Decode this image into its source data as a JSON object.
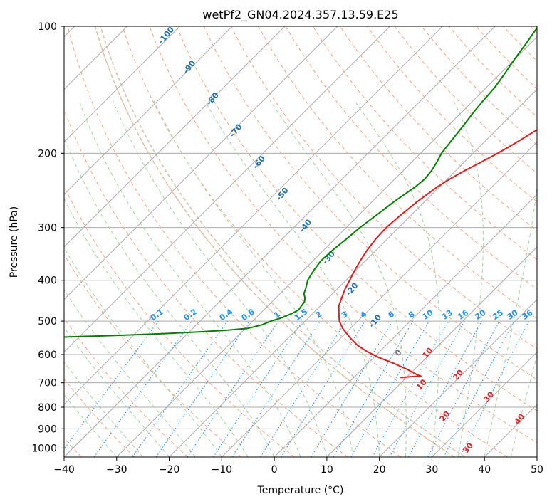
{
  "chart_data": {
    "type": "line",
    "subtype": "skew-t log-p",
    "title": "wetPf2_GN04.2024.357.13.59.E25",
    "xlabel": "Temperature (°C)",
    "ylabel": "Pressure (hPa)",
    "xlim": [
      -40,
      50
    ],
    "ylim": [
      1050,
      100
    ],
    "y_scale": "log",
    "grid": true,
    "x_ticks": [
      -40,
      -30,
      -20,
      -10,
      0,
      10,
      20,
      30,
      40,
      50
    ],
    "x_tick_labels": [
      "−40",
      "−30",
      "−20",
      "−10",
      "0",
      "10",
      "20",
      "30",
      "40",
      "50"
    ],
    "y_ticks": [
      100,
      200,
      300,
      400,
      500,
      600,
      700,
      800,
      900,
      1000
    ],
    "y_tick_labels": [
      "100",
      "200",
      "300",
      "400",
      "500",
      "600",
      "700",
      "800",
      "900",
      "1000"
    ],
    "series": [
      {
        "role": "temperature",
        "color": "#e41a1c",
        "points": [
          [
            680,
            8.8
          ],
          [
            675,
            12.5
          ],
          [
            670,
            11.5
          ],
          [
            650,
            8.5
          ],
          [
            630,
            5
          ],
          [
            610,
            1
          ],
          [
            590,
            -2.5
          ],
          [
            570,
            -5.5
          ],
          [
            550,
            -8
          ],
          [
            520,
            -11.5
          ],
          [
            500,
            -13.5
          ],
          [
            480,
            -15
          ],
          [
            460,
            -16.5
          ],
          [
            440,
            -17.5
          ],
          [
            420,
            -18.5
          ],
          [
            400,
            -19.3
          ],
          [
            380,
            -20.2
          ],
          [
            360,
            -21
          ],
          [
            340,
            -21.7
          ],
          [
            320,
            -22.2
          ],
          [
            300,
            -22.4
          ],
          [
            280,
            -22
          ],
          [
            260,
            -21.4
          ],
          [
            240,
            -20.4
          ],
          [
            230,
            -19.5
          ],
          [
            220,
            -18.3
          ],
          [
            210,
            -16.8
          ],
          [
            200,
            -15.3
          ],
          [
            190,
            -14
          ],
          [
            180,
            -12.8
          ],
          [
            170,
            -11.6
          ],
          [
            160,
            -10.5
          ],
          [
            150,
            -9.6
          ],
          [
            140,
            -8.8
          ],
          [
            130,
            -8.3
          ],
          [
            120,
            -8.2
          ],
          [
            115,
            -8.3
          ],
          [
            110,
            -8.6
          ],
          [
            105,
            -8.9
          ],
          [
            100,
            -9.2
          ]
        ]
      },
      {
        "role": "dewpoint",
        "color": "#008000",
        "points": [
          [
            550,
            -75
          ],
          [
            545,
            -62
          ],
          [
            540,
            -52
          ],
          [
            535,
            -44
          ],
          [
            530,
            -38
          ],
          [
            525,
            -33
          ],
          [
            520,
            -29.5
          ],
          [
            510,
            -27.5
          ],
          [
            500,
            -26.5
          ],
          [
            490,
            -25
          ],
          [
            480,
            -24
          ],
          [
            470,
            -23.4
          ],
          [
            460,
            -23.6
          ],
          [
            450,
            -23.8
          ],
          [
            440,
            -24.5
          ],
          [
            430,
            -25.5
          ],
          [
            420,
            -26
          ],
          [
            400,
            -27.3
          ],
          [
            380,
            -28
          ],
          [
            360,
            -28.5
          ],
          [
            340,
            -28.3
          ],
          [
            320,
            -27.8
          ],
          [
            300,
            -27.4
          ],
          [
            280,
            -26.6
          ],
          [
            260,
            -25.8
          ],
          [
            240,
            -24.6
          ],
          [
            230,
            -24.3
          ],
          [
            220,
            -24.6
          ],
          [
            210,
            -25.2
          ],
          [
            200,
            -26
          ],
          [
            190,
            -26.4
          ],
          [
            180,
            -26.8
          ],
          [
            170,
            -27.2
          ],
          [
            160,
            -27.7
          ],
          [
            150,
            -28.1
          ],
          [
            140,
            -28.4
          ],
          [
            130,
            -29.1
          ],
          [
            120,
            -30
          ],
          [
            110,
            -30.8
          ],
          [
            100,
            -31.8
          ]
        ]
      }
    ],
    "mixing_ratio_labels": [
      "0.1",
      "0.2",
      "0.4",
      "0.6",
      "1",
      "1.5",
      "2",
      "3",
      "4",
      "6",
      "8",
      "10",
      "13",
      "16",
      "20",
      "25",
      "30",
      "36"
    ],
    "dry_adiabat_labels": [
      "-100",
      "-90",
      "-80",
      "-70",
      "-60",
      "-50",
      "-40",
      "-30",
      "-20",
      "-10",
      "0",
      "10",
      "20",
      "30",
      "40"
    ],
    "moist_adiabat_labels": [
      "10",
      "20",
      "30",
      "40"
    ],
    "line_colors": {
      "isotherm": "#ababab",
      "isobar": "#ababab",
      "dry_adiabat": "#f4a582",
      "moist_adiabat": "#9fd39f",
      "mixing_ratio": "#1e90ff",
      "special_adiabat": "#d8c4a8"
    }
  }
}
